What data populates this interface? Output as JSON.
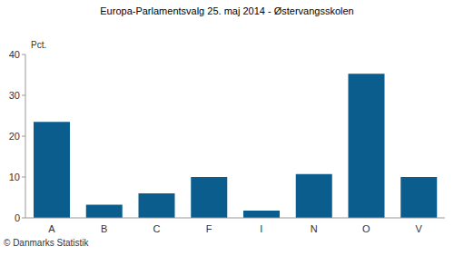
{
  "chart_data": {
    "type": "bar",
    "title": "Europa-Parlamentsvalg 25. maj 2014 - Østervangsskolen",
    "y_label": "Pct.",
    "footer": "© Danmarks Statistik",
    "categories": [
      "A",
      "B",
      "C",
      "F",
      "I",
      "N",
      "O",
      "V"
    ],
    "values": [
      23.5,
      3.2,
      6.0,
      10.0,
      1.8,
      10.7,
      35.3,
      10.0
    ],
    "color": "#0b5d8e",
    "ylim": [
      0,
      40
    ],
    "yticks": [
      0,
      10,
      20,
      30,
      40
    ],
    "grid": false
  }
}
